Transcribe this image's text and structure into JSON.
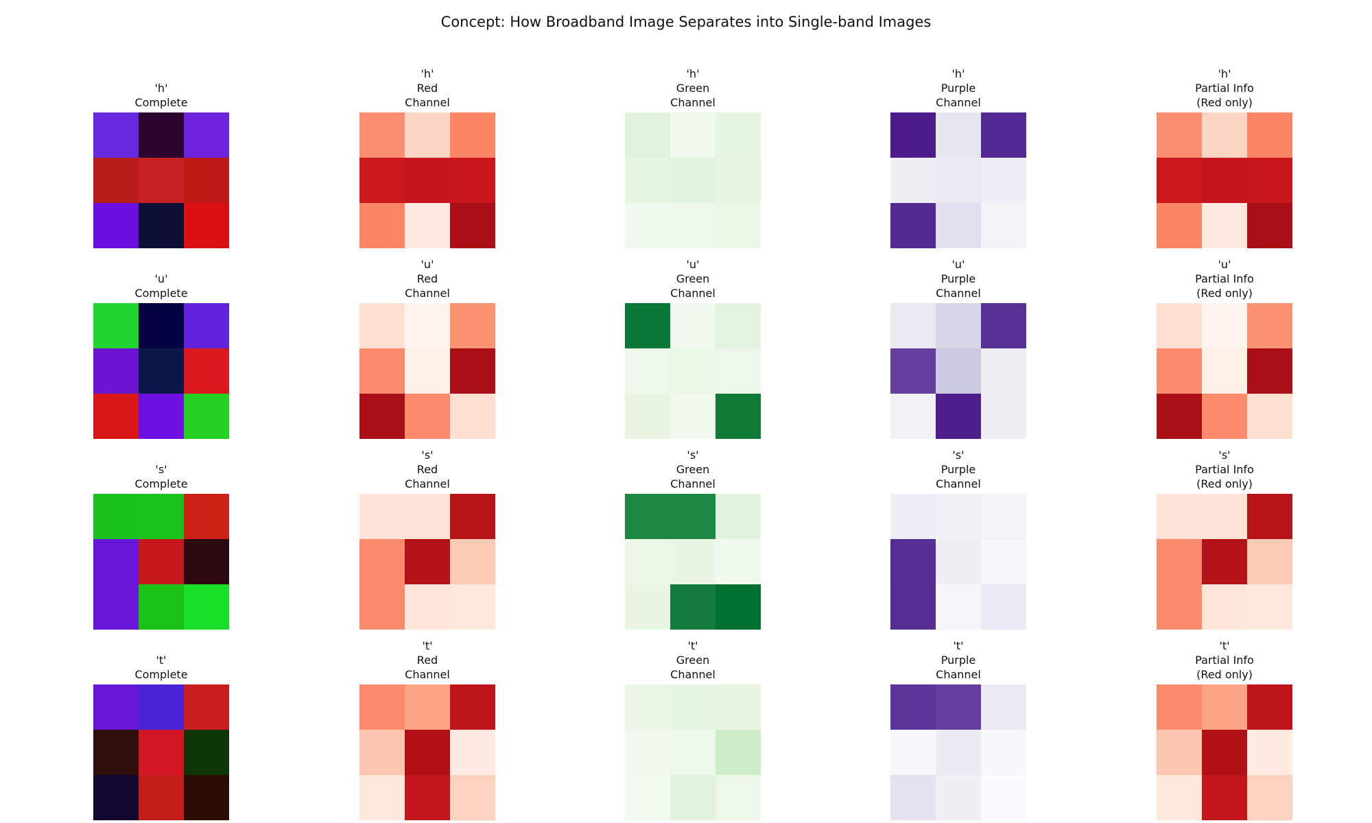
{
  "title": "Concept: How Broadband Image Separates into Single-band Images",
  "column_labels": {
    "complete": [
      "Complete"
    ],
    "red": [
      "Red",
      "Channel"
    ],
    "green": [
      "Green",
      "Channel"
    ],
    "purple": [
      "Purple",
      "Channel"
    ],
    "partial": [
      "Partial Info",
      "(Red only)"
    ]
  },
  "rows": [
    {
      "letter": "'h'",
      "complete": [
        [
          "#6629e0",
          "#2b0430",
          "#6d22dc"
        ],
        [
          "#b91d1a",
          "#c62124",
          "#bf1a16"
        ],
        [
          "#6b0fde",
          "#0e0f34",
          "#d90f12"
        ]
      ],
      "red": [
        [
          "#fb8d71",
          "#fdd5c4",
          "#fc8565"
        ],
        [
          "#ca181d",
          "#c4161c",
          "#c7171c"
        ],
        [
          "#fc8565",
          "#fee9e0",
          "#a91016"
        ]
      ],
      "green": [
        [
          "#e1f3dc",
          "#f1f9ee",
          "#e5f5e0"
        ],
        [
          "#e6f5e1",
          "#e1f3dc",
          "#e8f6e3"
        ],
        [
          "#f0f9ed",
          "#edf7ea",
          "#ebf7e7"
        ]
      ],
      "purple": [
        [
          "#4b1b8b",
          "#e6e6f1",
          "#532a93"
        ],
        [
          "#efeef5",
          "#ebeaf3",
          "#efeef6"
        ],
        [
          "#532a92",
          "#e1e0ee",
          "#f4f3f8"
        ]
      ],
      "partial": [
        [
          "#fb8d71",
          "#fdd5c4",
          "#fc8565"
        ],
        [
          "#ca181d",
          "#c4161c",
          "#c7171c"
        ],
        [
          "#fc8565",
          "#fee9e0",
          "#a91016"
        ]
      ]
    },
    {
      "letter": "'u'",
      "complete": [
        [
          "#1fd42c",
          "#020340",
          "#6322db"
        ],
        [
          "#6c14d0",
          "#0b1748",
          "#dc181f"
        ],
        [
          "#d81817",
          "#6b0fe2",
          "#25d221"
        ]
      ],
      "red": [
        [
          "#fee0d3",
          "#fff3ed",
          "#fc9272"
        ],
        [
          "#fb8b6d",
          "#fff0e8",
          "#a91016"
        ],
        [
          "#a91016",
          "#fb8b6d",
          "#fee0d3"
        ]
      ],
      "green": [
        [
          "#0b7736",
          "#f1f9ee",
          "#e4f4df"
        ],
        [
          "#eef8ea",
          "#ebf7e7",
          "#edf7ea"
        ],
        [
          "#e7f5e2",
          "#f1f9ee",
          "#0f7b37"
        ]
      ],
      "purple": [
        [
          "#ebeaf3",
          "#d6d6e8",
          "#573095"
        ],
        [
          "#653f9f",
          "#cbcae3",
          "#efeef5"
        ],
        [
          "#f2f1f7",
          "#4f1e8d",
          "#f0eff6"
        ]
      ],
      "partial": [
        [
          "#fee0d3",
          "#fff3ed",
          "#fc9272"
        ],
        [
          "#fb8b6d",
          "#fff0e8",
          "#a91016"
        ],
        [
          "#a91016",
          "#fb8b6d",
          "#fee0d3"
        ]
      ]
    },
    {
      "letter": "'s'",
      "complete": [
        [
          "#1ac11c",
          "#1bc11c",
          "#cc2216"
        ],
        [
          "#6816d9",
          "#c6181b",
          "#2c090e"
        ],
        [
          "#6816d8",
          "#1ac316",
          "#18e028"
        ]
      ],
      "red": [
        [
          "#fee3d6",
          "#fee3d6",
          "#b61419"
        ],
        [
          "#fb8a6c",
          "#b21218",
          "#fdcab5"
        ],
        [
          "#fb8a6c",
          "#fee6da",
          "#fee7dc"
        ]
      ],
      "green": [
        [
          "#1d8844",
          "#1d8844",
          "#e1f3dc"
        ],
        [
          "#ebf7e7",
          "#e8f6e3",
          "#f0f9ed"
        ],
        [
          "#e8f6e3",
          "#147d3d",
          "#00702e"
        ]
      ],
      "purple": [
        [
          "#efedf5",
          "#f1f0f7",
          "#f3f2f8"
        ],
        [
          "#552f94",
          "#efeef5",
          "#f6f5f9"
        ],
        [
          "#542e93",
          "#f6f5f9",
          "#ebeaf4"
        ]
      ],
      "partial": [
        [
          "#fee3d6",
          "#fee3d6",
          "#b61419"
        ],
        [
          "#fb8a6c",
          "#b21218",
          "#fdcab5"
        ],
        [
          "#fb8a6c",
          "#fee6da",
          "#fee7dc"
        ]
      ]
    },
    {
      "letter": "'t'",
      "complete": [
        [
          "#6816d8",
          "#4a23d7",
          "#c91d1e"
        ],
        [
          "#2d0e0a",
          "#d21625",
          "#0d3609"
        ],
        [
          "#14072f",
          "#c31f18",
          "#2b0d02"
        ]
      ],
      "red": [
        [
          "#fb8b6d",
          "#fca486",
          "#bd151a"
        ],
        [
          "#fdc6b0",
          "#af1117",
          "#feebe2"
        ],
        [
          "#fee7dc",
          "#c1161b",
          "#fdd2bf"
        ]
      ],
      "green": [
        [
          "#eaf7e6",
          "#e6f5e1",
          "#e7f5e2"
        ],
        [
          "#f1f9ee",
          "#edf8ea",
          "#cfecc9"
        ],
        [
          "#f3faf0",
          "#e1f3dc",
          "#edf8ea"
        ]
      ],
      "purple": [
        [
          "#5b3698",
          "#653f9f",
          "#ecebf4"
        ],
        [
          "#f8f7fb",
          "#ecebf4",
          "#f8f7fb"
        ],
        [
          "#e3e2ef",
          "#f0eff6",
          "#fbfafc"
        ]
      ],
      "partial": [
        [
          "#fb8b6d",
          "#fca486",
          "#bd151a"
        ],
        [
          "#fdc6b0",
          "#af1117",
          "#feebe2"
        ],
        [
          "#fee7dc",
          "#c1161b",
          "#fdd2bf"
        ]
      ]
    }
  ]
}
